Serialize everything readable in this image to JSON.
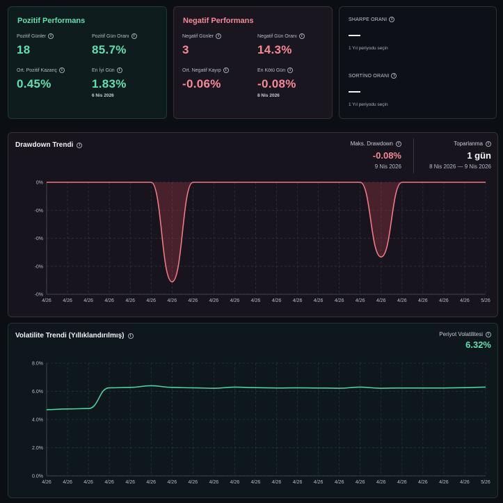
{
  "positive": {
    "title": "Pozitif Performans",
    "positive_days_label": "Pozitif Günler",
    "positive_days_value": "18",
    "positive_ratio_label": "Pozitif Gün Oranı",
    "positive_ratio_value": "85.7%",
    "avg_gain_label": "Ort. Pozitif Kazanç",
    "avg_gain_value": "0.45%",
    "best_day_label": "En İyi Gün",
    "best_day_value": "1.83%",
    "best_day_date": "6 Nis 2026"
  },
  "negative": {
    "title": "Negatif Performans",
    "negative_days_label": "Negatif Günler",
    "negative_days_value": "3",
    "negative_ratio_label": "Negatif Gün Oranı",
    "negative_ratio_value": "14.3%",
    "avg_loss_label": "Ort. Negatif Kayıp",
    "avg_loss_value": "-0.06%",
    "worst_day_label": "En Kötü Gün",
    "worst_day_value": "-0.08%",
    "worst_day_date": "8 Nis 2026"
  },
  "ratios": {
    "sharpe_label": "SHARPE ORANI",
    "sharpe_value": "—",
    "sharpe_note": "1 Yıl periyodu seçin",
    "sortino_label": "SORTİNO ORANI",
    "sortino_value": "—",
    "sortino_note": "1 Yıl periyodu seçin"
  },
  "drawdown": {
    "title": "Drawdown Trendi",
    "max_label": "Maks. Drawdown",
    "max_value": "-0.08%",
    "max_date": "9 Nis 2026",
    "recovery_label": "Toparlanma",
    "recovery_value": "1 gün",
    "recovery_range": "8 Nis 2026 — 9 Nis 2026"
  },
  "volatility": {
    "title": "Volatilite Trendi (Yıllıklandırılmış)",
    "period_label": "Periyot Volatilitesi",
    "period_value": "6.32%"
  },
  "colors": {
    "positive": "#5ee0b0",
    "negative": "#f58a96",
    "drawdown_line": "#f07a88",
    "volatility_line": "#4ed4a0"
  },
  "icons": {
    "info": "info-circle-icon"
  },
  "chart_data": [
    {
      "type": "area",
      "title": "Drawdown Trendi",
      "xlabel": "",
      "ylabel": "",
      "y_tick_labels": [
        "0%",
        "-0%",
        "-0%",
        "-0%",
        "-0%"
      ],
      "ylim": [
        -0.09,
        0
      ],
      "x_tick_labels": [
        "4/26",
        "4/26",
        "4/26",
        "4/26",
        "4/26",
        "4/26",
        "4/26",
        "4/26",
        "4/26",
        "4/26",
        "4/26",
        "4/26",
        "4/26",
        "4/26",
        "4/26",
        "4/26",
        "4/26",
        "4/26",
        "4/26",
        "4/26",
        "4/26",
        "5/26"
      ],
      "grid": true,
      "series": [
        {
          "values": [
            0,
            0,
            0,
            0,
            0,
            0,
            -0.08,
            0,
            0,
            0,
            0,
            0,
            0,
            0,
            0,
            0,
            -0.06,
            0,
            0,
            0,
            0,
            0
          ]
        }
      ]
    },
    {
      "type": "line",
      "title": "Volatilite Trendi (Yıllıklandırılmış)",
      "xlabel": "",
      "ylabel": "",
      "y_tick_labels": [
        "0.0%",
        "2.0%",
        "4.0%",
        "6.0%",
        "8.0%"
      ],
      "ylim": [
        0,
        8
      ],
      "x_tick_labels": [
        "4/26",
        "4/26",
        "4/26",
        "4/26",
        "4/26",
        "4/26",
        "4/26",
        "4/26",
        "4/26",
        "4/26",
        "4/26",
        "4/26",
        "4/26",
        "4/26",
        "4/26",
        "4/26",
        "4/26",
        "4/26",
        "4/26",
        "4/26",
        "4/26",
        "5/26"
      ],
      "grid": true,
      "series": [
        {
          "values": [
            4.7,
            4.75,
            4.78,
            6.25,
            6.28,
            6.4,
            6.28,
            6.25,
            6.22,
            6.3,
            6.26,
            6.24,
            6.25,
            6.24,
            6.22,
            6.3,
            6.22,
            6.24,
            6.24,
            6.24,
            6.26,
            6.3
          ]
        }
      ]
    }
  ]
}
